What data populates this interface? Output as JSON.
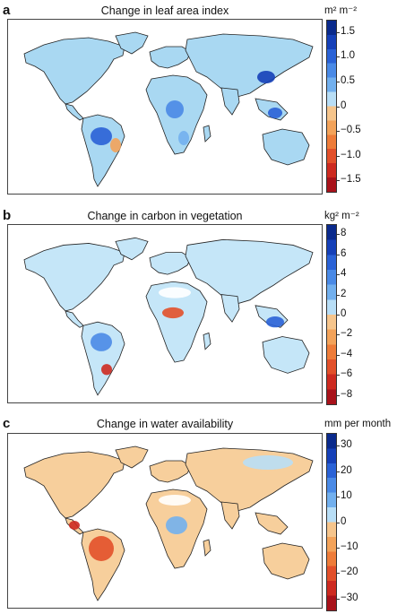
{
  "panels": [
    {
      "id": "a",
      "letter": "a",
      "title": "Change in leaf area index",
      "units": "m² m⁻²",
      "ticks": [
        "1.5",
        "1.0",
        "0.5",
        "0",
        "−0.5",
        "−1.0",
        "−1.5"
      ],
      "scale": {
        "min": -1.75,
        "max": 1.75,
        "tick_values": [
          1.5,
          1.0,
          0.5,
          0,
          -0.5,
          -1.0,
          -1.5
        ]
      },
      "colors": [
        "#0a2a8c",
        "#1540b8",
        "#2a62d6",
        "#4a8ae6",
        "#72b0ee",
        "#b8def6",
        "#f6c58c",
        "#f3a35a",
        "#ee7c39",
        "#e2502a",
        "#cd2a20",
        "#a8121a"
      ],
      "land_color": "#a9d8f2",
      "highlights": [
        "Amazon: blue increase",
        "South Africa: blue",
        "East China: dark blue",
        "Southeast Asia: blue",
        "NE Brazil: orange decrease"
      ]
    },
    {
      "id": "b",
      "letter": "b",
      "title": "Change in carbon in vegetation",
      "units": "kg² m⁻²",
      "ticks": [
        "8",
        "6",
        "4",
        "2",
        "0",
        "−2",
        "−4",
        "−6",
        "−8"
      ],
      "scale": {
        "min": -9,
        "max": 9,
        "tick_values": [
          8,
          6,
          4,
          2,
          0,
          -2,
          -4,
          -6,
          -8
        ]
      },
      "colors": [
        "#0a2a8c",
        "#1540b8",
        "#2a62d6",
        "#4a8ae6",
        "#72b0ee",
        "#b8def6",
        "#f6c58c",
        "#f3a35a",
        "#ee7c39",
        "#e2502a",
        "#cd2a20",
        "#a8121a"
      ],
      "land_color": "#c5e6f8",
      "highlights": [
        "Amazon: blue increase",
        "Central Africa: orange/red decrease",
        "SE Brazil: red decrease",
        "SE Asia: blue increase"
      ]
    },
    {
      "id": "c",
      "letter": "c",
      "title": "Change in water availability",
      "units": "mm per month",
      "ticks": [
        "30",
        "20",
        "10",
        "0",
        "−10",
        "−20",
        "−30"
      ],
      "scale": {
        "min": -35,
        "max": 35,
        "tick_values": [
          30,
          20,
          10,
          0,
          -10,
          -20,
          -30
        ]
      },
      "colors": [
        "#0a2a8c",
        "#1540b8",
        "#2a62d6",
        "#4a8ae6",
        "#72b0ee",
        "#b8def6",
        "#f6c58c",
        "#f3a35a",
        "#ee7c39",
        "#e2502a",
        "#cd2a20",
        "#a8121a"
      ],
      "land_color": "#f7cf9c",
      "highlights": [
        "Amazon: red decrease",
        "Central America: red",
        "Central Africa: blue increase",
        "Siberia: light blue"
      ]
    }
  ]
}
